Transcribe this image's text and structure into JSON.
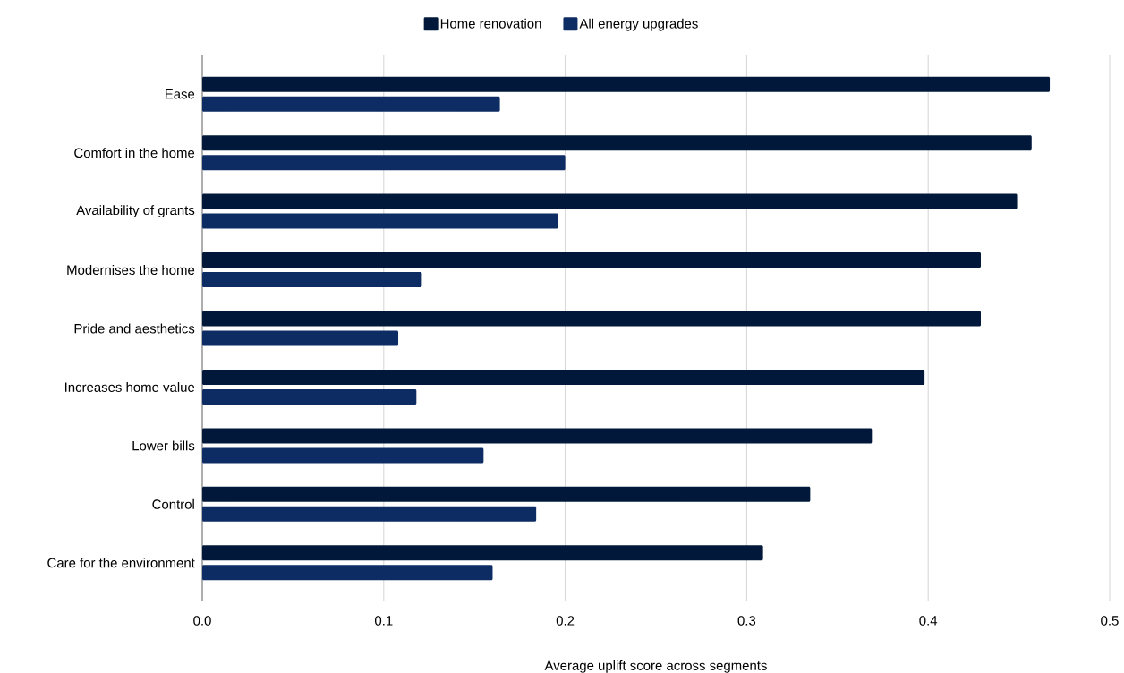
{
  "chart_data": {
    "type": "bar",
    "orientation": "horizontal",
    "categories": [
      "Ease",
      "Comfort in the home",
      "Availability of grants",
      "Modernises the home",
      "Pride and aesthetics",
      "Increases home value",
      "Lower bills",
      "Control",
      "Care for the environment"
    ],
    "series": [
      {
        "name": "Home renovation",
        "color": "#02183a",
        "values": [
          0.467,
          0.457,
          0.449,
          0.429,
          0.429,
          0.398,
          0.369,
          0.335,
          0.309
        ]
      },
      {
        "name": "All energy upgrades",
        "color": "#0d2c64",
        "values": [
          0.164,
          0.2,
          0.196,
          0.121,
          0.108,
          0.118,
          0.155,
          0.184,
          0.16
        ]
      }
    ],
    "xlabel": "Average uplift score across segments",
    "xlim": [
      0,
      0.5
    ],
    "xticks": [
      {
        "value": 0,
        "label": "0.0"
      },
      0.1,
      0.2,
      0.3,
      0.4,
      0.5
    ],
    "grid": "x",
    "legend": "top"
  }
}
